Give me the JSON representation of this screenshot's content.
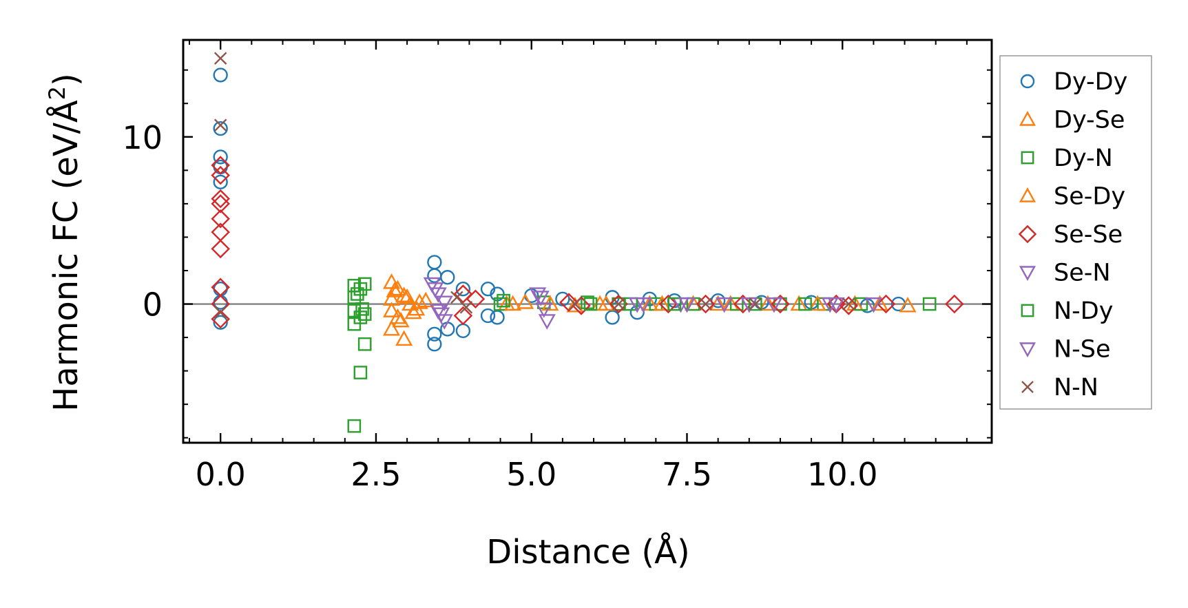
{
  "chart_data": {
    "type": "scatter",
    "title": "",
    "xlabel": "Distance (Å)",
    "ylabel_main": "Harmonic FC (eV/Å",
    "ylabel_sup": "2",
    "ylabel_close": ")",
    "xlim": [
      -0.6,
      12.4
    ],
    "ylim": [
      -8.3,
      15.8
    ],
    "xticks": [
      0.0,
      2.5,
      5.0,
      7.5,
      10.0
    ],
    "xtick_labels": [
      "0.0",
      "2.5",
      "5.0",
      "7.5",
      "10.0"
    ],
    "yticks": [
      0,
      10
    ],
    "ytick_labels": [
      "0",
      "10"
    ],
    "legend_position": "right, outside plot",
    "reference_line_y": 0,
    "series": [
      {
        "name": "Dy-Dy",
        "marker": "circle",
        "color": "#1f77b4",
        "points": [
          [
            0,
            13.7
          ],
          [
            0,
            10.5
          ],
          [
            0,
            8.8
          ],
          [
            0,
            8.2
          ],
          [
            0,
            7.3
          ],
          [
            0,
            0.9
          ],
          [
            0,
            0.1
          ],
          [
            0,
            -1.1
          ],
          [
            3.44,
            2.5
          ],
          [
            3.44,
            1.7
          ],
          [
            3.44,
            -1.8
          ],
          [
            3.44,
            -2.4
          ],
          [
            3.65,
            1.6
          ],
          [
            3.65,
            -1.5
          ],
          [
            3.9,
            0.9
          ],
          [
            3.9,
            -1.6
          ],
          [
            4.3,
            0.9
          ],
          [
            4.3,
            -0.7
          ],
          [
            4.45,
            0.6
          ],
          [
            4.45,
            -0.8
          ],
          [
            5.0,
            0.5
          ],
          [
            5.5,
            0.3
          ],
          [
            6.3,
            0.4
          ],
          [
            6.3,
            -0.8
          ],
          [
            6.7,
            -0.5
          ],
          [
            6.9,
            0.3
          ],
          [
            7.3,
            0.2
          ],
          [
            8.0,
            0.2
          ],
          [
            8.7,
            0.1
          ],
          [
            9.5,
            0.1
          ],
          [
            10.4,
            -0.1
          ],
          [
            10.9,
            0.0
          ]
        ]
      },
      {
        "name": "Dy-Se",
        "marker": "triangle-up",
        "color": "#ff7f0e",
        "points": [
          [
            2.75,
            1.3
          ],
          [
            2.75,
            0.3
          ],
          [
            2.75,
            -0.4
          ],
          [
            2.75,
            -1.5
          ],
          [
            2.85,
            0.9
          ],
          [
            2.85,
            -0.8
          ],
          [
            2.95,
            -2.1
          ],
          [
            2.95,
            0.5
          ],
          [
            3.05,
            0.0
          ],
          [
            3.15,
            -0.3
          ],
          [
            3.3,
            0.2
          ],
          [
            4.6,
            0.0
          ],
          [
            4.9,
            0.1
          ],
          [
            5.7,
            -0.1
          ],
          [
            6.1,
            0.0
          ],
          [
            6.9,
            0.0
          ],
          [
            7.6,
            0.0
          ],
          [
            8.2,
            0.0
          ],
          [
            9.3,
            0.0
          ],
          [
            10.2,
            0.0
          ],
          [
            11.05,
            -0.1
          ]
        ]
      },
      {
        "name": "Dy-N",
        "marker": "square",
        "color": "#2ca02c",
        "points": [
          [
            2.15,
            1.1
          ],
          [
            2.15,
            0.4
          ],
          [
            2.15,
            -0.4
          ],
          [
            2.15,
            -1.2
          ],
          [
            2.15,
            -7.3
          ],
          [
            2.25,
            0.9
          ],
          [
            2.25,
            -0.8
          ],
          [
            2.25,
            -4.1
          ],
          [
            2.32,
            1.2
          ],
          [
            2.32,
            -0.6
          ],
          [
            2.32,
            -2.4
          ],
          [
            4.5,
            0.0
          ],
          [
            5.2,
            0.1
          ],
          [
            5.9,
            0.1
          ],
          [
            6.4,
            0.0
          ],
          [
            7.0,
            0.0
          ],
          [
            7.6,
            0.0
          ],
          [
            8.3,
            0.0
          ],
          [
            9.0,
            0.0
          ],
          [
            9.7,
            0.0
          ],
          [
            10.3,
            0.0
          ],
          [
            11.4,
            0.0
          ]
        ]
      },
      {
        "name": "Se-Dy",
        "marker": "triangle-up",
        "color": "#ff7f0e",
        "points": [
          [
            2.8,
            0.8
          ],
          [
            2.9,
            -1.0
          ],
          [
            3.0,
            0.4
          ],
          [
            3.1,
            -0.5
          ],
          [
            3.2,
            0.1
          ],
          [
            4.7,
            0.0
          ],
          [
            5.3,
            0.0
          ],
          [
            6.2,
            0.0
          ],
          [
            7.1,
            0.0
          ],
          [
            8.0,
            0.0
          ],
          [
            8.8,
            0.0
          ],
          [
            9.6,
            0.0
          ],
          [
            10.6,
            0.0
          ]
        ]
      },
      {
        "name": "Se-Se",
        "marker": "diamond",
        "color": "#d62728",
        "points": [
          [
            0,
            8.3
          ],
          [
            0,
            7.7
          ],
          [
            0,
            6.3
          ],
          [
            0,
            6.0
          ],
          [
            0,
            5.1
          ],
          [
            0,
            4.3
          ],
          [
            0,
            3.3
          ],
          [
            0,
            1.0
          ],
          [
            0,
            0.0
          ],
          [
            0,
            -0.9
          ],
          [
            3.9,
            0.6
          ],
          [
            3.9,
            -0.7
          ],
          [
            4.1,
            0.3
          ],
          [
            5.6,
            0.1
          ],
          [
            5.8,
            -0.1
          ],
          [
            6.4,
            0.0
          ],
          [
            7.2,
            0.0
          ],
          [
            7.8,
            0.0
          ],
          [
            8.4,
            0.0
          ],
          [
            9.0,
            0.0
          ],
          [
            9.9,
            0.0
          ],
          [
            10.1,
            -0.1
          ],
          [
            10.7,
            0.0
          ],
          [
            11.8,
            0.0
          ]
        ]
      },
      {
        "name": "Se-N",
        "marker": "triangle-down",
        "color": "#9467bd",
        "points": [
          [
            3.4,
            1.2
          ],
          [
            3.5,
            0.6
          ],
          [
            3.5,
            -0.4
          ],
          [
            3.6,
            0.1
          ],
          [
            3.6,
            -1.0
          ],
          [
            5.1,
            0.6
          ],
          [
            5.2,
            -0.3
          ],
          [
            5.25,
            -1.0
          ],
          [
            6.8,
            0.0
          ],
          [
            7.4,
            0.0
          ],
          [
            8.1,
            0.0
          ],
          [
            8.9,
            0.0
          ],
          [
            9.8,
            0.0
          ],
          [
            10.5,
            0.0
          ]
        ]
      },
      {
        "name": "N-Dy",
        "marker": "square",
        "color": "#2ca02c",
        "points": [
          [
            2.2,
            0.6
          ],
          [
            2.28,
            -0.3
          ],
          [
            4.55,
            0.2
          ],
          [
            5.95,
            0.0
          ],
          [
            6.6,
            0.0
          ],
          [
            7.3,
            0.0
          ],
          [
            8.6,
            0.0
          ],
          [
            9.4,
            0.0
          ]
        ]
      },
      {
        "name": "N-Se",
        "marker": "triangle-down",
        "color": "#9467bd",
        "points": [
          [
            3.45,
            0.9
          ],
          [
            3.55,
            -0.6
          ],
          [
            5.15,
            0.4
          ],
          [
            6.7,
            0.0
          ],
          [
            7.5,
            0.0
          ],
          [
            8.5,
            0.0
          ],
          [
            9.9,
            0.0
          ]
        ]
      },
      {
        "name": "N-N",
        "marker": "x",
        "color": "#8c564b",
        "points": [
          [
            0,
            14.7
          ],
          [
            0,
            10.7
          ],
          [
            0,
            -0.5
          ],
          [
            3.8,
            0.4
          ],
          [
            3.95,
            -0.2
          ],
          [
            5.7,
            0.0
          ],
          [
            6.4,
            0.0
          ],
          [
            7.8,
            0.0
          ],
          [
            8.6,
            0.0
          ],
          [
            10.1,
            0.0
          ]
        ]
      }
    ]
  }
}
